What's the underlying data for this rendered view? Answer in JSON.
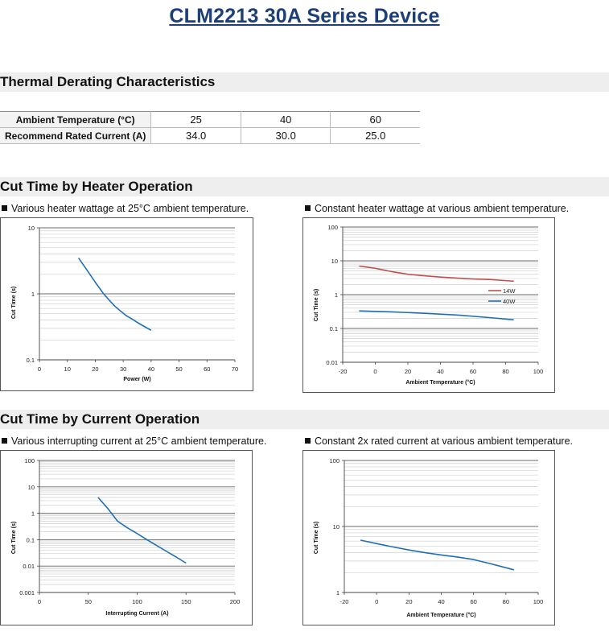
{
  "header": {
    "title": "CLM2213 30A Series Device"
  },
  "sections": {
    "thermal": "Thermal Derating Characteristics",
    "heater": "Cut Time by Heater Operation",
    "current": "Cut Time by Current Operation"
  },
  "derating_table": {
    "row1_label": "Ambient Temperature (°C)",
    "row1_values": [
      "25",
      "40",
      "60"
    ],
    "row2_label": "Recommend Rated Current (A)",
    "row2_values": [
      "34.0",
      "30.0",
      "25.0"
    ]
  },
  "chart_data": [
    {
      "type": "line",
      "subtitle": "Various heater wattage at 25°C ambient temperature.",
      "xlabel": "Power (W)",
      "ylabel": "Cut Time (s)",
      "xlim": [
        0,
        70
      ],
      "ylim": [
        0.1,
        10
      ],
      "ylog": true,
      "xticks": [
        0,
        10,
        20,
        30,
        40,
        50,
        60,
        70
      ],
      "yticks": [
        0.1,
        1,
        10
      ],
      "ytick_labels": [
        "0.1",
        "1",
        "10"
      ],
      "grid": true,
      "series": [
        {
          "color": "#1f6fb4",
          "x": [
            14,
            17,
            20,
            23,
            25,
            27,
            29,
            31,
            33,
            35,
            37,
            40
          ],
          "y": [
            3.5,
            2.3,
            1.5,
            1.0,
            0.8,
            0.65,
            0.55,
            0.47,
            0.42,
            0.37,
            0.33,
            0.28
          ]
        }
      ]
    },
    {
      "type": "line",
      "subtitle": "Constant heater wattage at various ambient temperature.",
      "xlabel": "Ambient Temperature (°C)",
      "ylabel": "Cut Time (s)",
      "xlim": [
        -20,
        100
      ],
      "ylim": [
        0.01,
        100
      ],
      "ylog": true,
      "xticks": [
        -20,
        0,
        20,
        40,
        60,
        80,
        100
      ],
      "yticks": [
        0.01,
        0.1,
        1,
        10,
        100
      ],
      "ytick_labels": [
        "0.01",
        "0.1",
        "1",
        "10",
        "100"
      ],
      "grid": true,
      "legend": "right",
      "series": [
        {
          "name": "14W",
          "color": "#c0504d",
          "x": [
            -10,
            0,
            10,
            20,
            30,
            40,
            50,
            60,
            70,
            85
          ],
          "y": [
            7.0,
            6.0,
            4.8,
            4.0,
            3.6,
            3.3,
            3.1,
            2.9,
            2.8,
            2.5
          ]
        },
        {
          "name": "40W",
          "color": "#1f6fb4",
          "x": [
            -10,
            10,
            30,
            50,
            70,
            85
          ],
          "y": [
            0.33,
            0.31,
            0.28,
            0.25,
            0.21,
            0.18
          ]
        }
      ]
    },
    {
      "type": "line",
      "subtitle": "Various interrupting current at 25°C ambient temperature.",
      "xlabel": "Interrupting Current (A)",
      "ylabel": "Cut Time (s)",
      "xlim": [
        0,
        200
      ],
      "ylim": [
        0.001,
        100
      ],
      "ylog": true,
      "xticks": [
        0,
        50,
        100,
        150,
        200
      ],
      "yticks": [
        0.001,
        0.01,
        0.1,
        1,
        10,
        100
      ],
      "ytick_labels": [
        "0.001",
        "0.01",
        "0.1",
        "1",
        "10",
        "100"
      ],
      "grid": true,
      "series": [
        {
          "color": "#1f6fb4",
          "x": [
            60,
            70,
            80,
            90,
            100,
            110,
            120,
            130,
            140,
            150
          ],
          "y": [
            4.0,
            1.5,
            0.5,
            0.28,
            0.17,
            0.1,
            0.06,
            0.036,
            0.022,
            0.013
          ]
        }
      ]
    },
    {
      "type": "line",
      "subtitle": "Constant 2x rated current at various ambient temperature.",
      "xlabel": "Ambient Temperature (°C)",
      "ylabel": "Cut Time (s)",
      "xlim": [
        -20,
        100
      ],
      "ylim": [
        1,
        100
      ],
      "ylog": true,
      "xticks": [
        -20,
        0,
        20,
        40,
        60,
        80,
        100
      ],
      "yticks": [
        1,
        10,
        100
      ],
      "ytick_labels": [
        "1",
        "10",
        "100"
      ],
      "grid": true,
      "series": [
        {
          "color": "#1f6fb4",
          "x": [
            -10,
            0,
            10,
            20,
            30,
            40,
            50,
            60,
            70,
            85
          ],
          "y": [
            6.2,
            5.5,
            4.9,
            4.4,
            4.0,
            3.7,
            3.45,
            3.15,
            2.75,
            2.2
          ]
        }
      ]
    }
  ]
}
